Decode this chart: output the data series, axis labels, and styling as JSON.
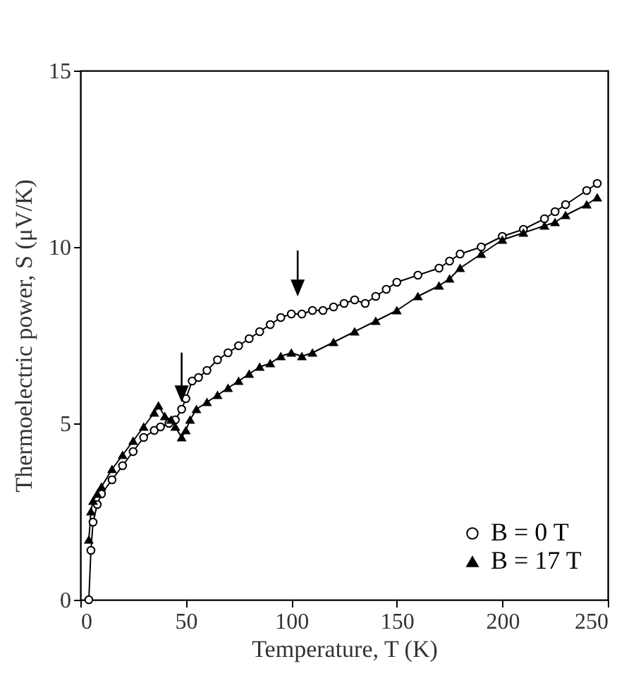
{
  "chart_data": {
    "type": "line",
    "xlabel": "Temperature, T (K)",
    "ylabel": "Thermoelectric power, S (μV/K)",
    "xlim": [
      0,
      250
    ],
    "ylim": [
      0,
      15
    ],
    "xticks": [
      0,
      50,
      100,
      150,
      200,
      250
    ],
    "yticks": [
      0,
      5,
      10,
      15
    ],
    "legend": "bottom right",
    "grid": false,
    "series": [
      {
        "name": "B = 0 T",
        "color": "#000000",
        "marker": "circle",
        "x": [
          4,
          5,
          6,
          8,
          10,
          15,
          20,
          25,
          30,
          35,
          38,
          42,
          45,
          48,
          50,
          53,
          56,
          60,
          65,
          70,
          75,
          80,
          85,
          90,
          95,
          100,
          105,
          110,
          115,
          120,
          125,
          130,
          135,
          140,
          145,
          150,
          160,
          170,
          175,
          180,
          190,
          200,
          210,
          220,
          225,
          230,
          240,
          245
        ],
        "values": [
          0,
          1.4,
          2.2,
          2.7,
          3.0,
          3.4,
          3.8,
          4.2,
          4.6,
          4.8,
          4.9,
          5.0,
          5.1,
          5.4,
          5.7,
          6.2,
          6.3,
          6.5,
          6.8,
          7.0,
          7.2,
          7.4,
          7.6,
          7.8,
          8.0,
          8.1,
          8.1,
          8.2,
          8.2,
          8.3,
          8.4,
          8.5,
          8.4,
          8.6,
          8.8,
          9.0,
          9.2,
          9.4,
          9.6,
          9.8,
          10.0,
          10.3,
          10.5,
          10.8,
          11.0,
          11.2,
          11.6,
          11.8
        ]
      },
      {
        "name": "B = 17 T",
        "color": "#000000",
        "marker": "triangle",
        "x": [
          4,
          5,
          6,
          8,
          10,
          15,
          20,
          25,
          30,
          35,
          37,
          40,
          43,
          45,
          48,
          50,
          52,
          55,
          60,
          65,
          70,
          75,
          80,
          85,
          90,
          95,
          100,
          105,
          110,
          120,
          130,
          140,
          150,
          160,
          170,
          175,
          180,
          190,
          200,
          210,
          220,
          225,
          230,
          240,
          245
        ],
        "values": [
          1.7,
          2.5,
          2.8,
          3.0,
          3.2,
          3.7,
          4.1,
          4.5,
          4.9,
          5.3,
          5.5,
          5.2,
          5.1,
          4.9,
          4.6,
          4.8,
          5.1,
          5.4,
          5.6,
          5.8,
          6.0,
          6.2,
          6.4,
          6.6,
          6.7,
          6.9,
          7.0,
          6.9,
          7.0,
          7.3,
          7.6,
          7.9,
          8.2,
          8.6,
          8.9,
          9.1,
          9.4,
          9.8,
          10.2,
          10.4,
          10.6,
          10.7,
          10.9,
          11.2,
          11.4
        ]
      }
    ]
  }
}
